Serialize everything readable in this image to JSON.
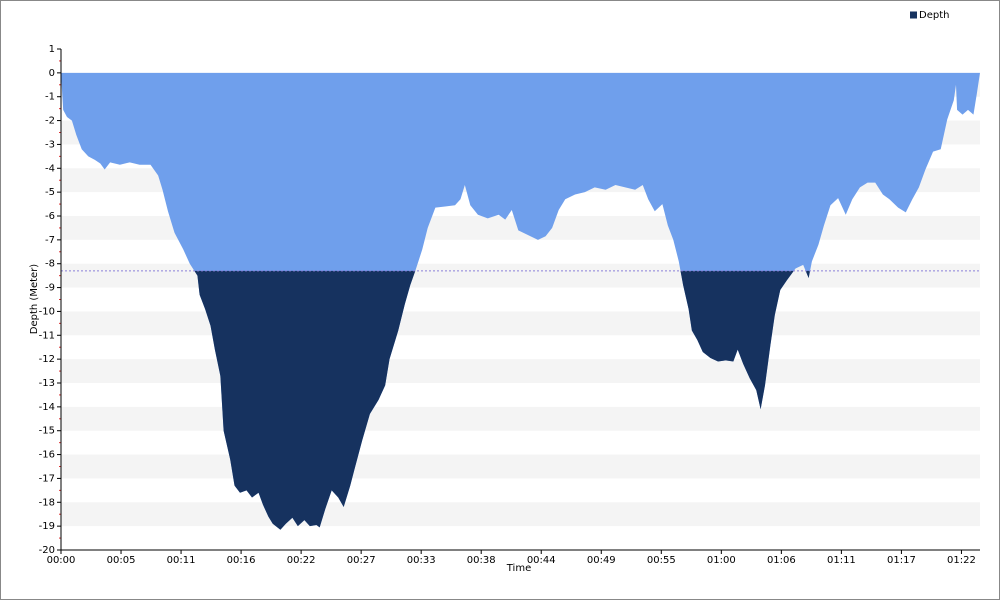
{
  "chart_data": {
    "type": "area",
    "x_label": "Time",
    "y_label": "Depth (Meter)",
    "x": [
      0,
      0.2,
      0.55,
      1.0,
      1.4,
      1.9,
      2.5,
      3.1,
      3.6,
      4.0,
      4.5,
      5.4,
      6.3,
      7.2,
      8.2,
      8.9,
      9.3,
      9.8,
      10.4,
      11.2,
      11.8,
      12.5,
      12.7,
      13.2,
      13.7,
      14.1,
      14.6,
      14.9,
      15.5,
      15.9,
      16.4,
      17.0,
      17.5,
      18.1,
      18.5,
      19.0,
      19.4,
      20.1,
      20.6,
      21.2,
      21.7,
      22.3,
      22.8,
      23.4,
      23.7,
      24.2,
      24.8,
      25.4,
      25.9,
      26.5,
      26.9,
      27.6,
      28.3,
      29.1,
      29.7,
      30.1,
      30.9,
      31.5,
      32.0,
      32.5,
      33.1,
      33.6,
      34.3,
      35.2,
      36.1,
      36.6,
      37.0,
      37.5,
      38.2,
      39.1,
      40.1,
      40.7,
      41.3,
      41.9,
      42.8,
      43.7,
      44.4,
      45.0,
      45.6,
      46.2,
      47.1,
      48.0,
      48.9,
      49.9,
      50.8,
      51.7,
      52.6,
      53.3,
      53.8,
      54.4,
      55.1,
      55.6,
      56.1,
      56.6,
      57.0,
      57.5,
      57.8,
      58.3,
      58.8,
      59.5,
      60.2,
      60.9,
      61.6,
      62.0,
      62.5,
      63.1,
      63.7,
      64.1,
      64.5,
      65.0,
      65.4,
      65.9,
      66.5,
      67.3,
      68.0,
      68.5,
      68.8,
      69.4,
      69.9,
      70.5,
      71.2,
      71.9,
      72.5,
      73.2,
      73.9,
      74.6,
      75.3,
      75.9,
      76.7,
      77.4,
      78.0,
      78.6,
      79.2,
      79.9,
      80.6,
      81.2,
      81.8,
      82.0,
      82.1,
      82.6,
      83.1,
      83.6,
      83.9,
      84.2
    ],
    "series": [
      {
        "name": "Depth",
        "color": "#6f9fec",
        "legend_color": "#16325f",
        "values": [
          0,
          -1.55,
          -1.85,
          -2.0,
          -2.6,
          -3.2,
          -3.5,
          -3.65,
          -3.8,
          -4.05,
          -3.75,
          -3.85,
          -3.75,
          -3.85,
          -3.85,
          -4.3,
          -4.9,
          -5.8,
          -6.7,
          -7.4,
          -8.0,
          -8.5,
          -9.3,
          -9.9,
          -10.6,
          -11.6,
          -12.7,
          -15.0,
          -16.2,
          -17.3,
          -17.6,
          -17.5,
          -17.8,
          -17.6,
          -18.1,
          -18.6,
          -18.9,
          -19.15,
          -18.9,
          -18.65,
          -19.0,
          -18.75,
          -19.0,
          -18.95,
          -19.05,
          -18.3,
          -17.5,
          -17.8,
          -18.2,
          -17.3,
          -16.6,
          -15.4,
          -14.3,
          -13.7,
          -13.1,
          -12.0,
          -10.8,
          -9.7,
          -8.9,
          -8.25,
          -7.4,
          -6.5,
          -5.65,
          -5.6,
          -5.55,
          -5.3,
          -4.7,
          -5.55,
          -5.95,
          -6.1,
          -5.95,
          -6.15,
          -5.75,
          -6.6,
          -6.8,
          -7.0,
          -6.85,
          -6.5,
          -5.75,
          -5.3,
          -5.1,
          -5.0,
          -4.8,
          -4.9,
          -4.7,
          -4.8,
          -4.9,
          -4.7,
          -5.3,
          -5.8,
          -5.5,
          -6.4,
          -7.0,
          -7.9,
          -8.9,
          -9.9,
          -10.8,
          -11.2,
          -11.7,
          -11.95,
          -12.1,
          -12.05,
          -12.1,
          -11.6,
          -12.2,
          -12.8,
          -13.3,
          -14.1,
          -13.1,
          -11.4,
          -10.15,
          -9.1,
          -8.7,
          -8.2,
          -8.05,
          -8.6,
          -7.9,
          -7.2,
          -6.4,
          -5.55,
          -5.25,
          -5.95,
          -5.3,
          -4.8,
          -4.6,
          -4.6,
          -5.1,
          -5.3,
          -5.65,
          -5.85,
          -5.3,
          -4.8,
          -4.05,
          -3.3,
          -3.2,
          -1.95,
          -1.15,
          -0.5,
          -1.55,
          -1.75,
          -1.55,
          -1.75,
          -0.9,
          0
        ]
      }
    ],
    "threshold": -8.3,
    "threshold_fill": "#16325f",
    "threshold_line_color": "#8a7fd8",
    "xlim": [
      0,
      84.2
    ],
    "xticks": [
      {
        "value": 0,
        "label": "00:00"
      },
      {
        "value": 5.5,
        "label": "00:05"
      },
      {
        "value": 11,
        "label": "00:11"
      },
      {
        "value": 16.5,
        "label": "00:16"
      },
      {
        "value": 22,
        "label": "00:22"
      },
      {
        "value": 27.5,
        "label": "00:27"
      },
      {
        "value": 33,
        "label": "00:33"
      },
      {
        "value": 38.5,
        "label": "00:38"
      },
      {
        "value": 44,
        "label": "00:44"
      },
      {
        "value": 49.5,
        "label": "00:49"
      },
      {
        "value": 55,
        "label": "00:55"
      },
      {
        "value": 60.5,
        "label": "01:00"
      },
      {
        "value": 66,
        "label": "01:06"
      },
      {
        "value": 71.5,
        "label": "01:11"
      },
      {
        "value": 77,
        "label": "01:17"
      },
      {
        "value": 82.5,
        "label": "01:22"
      }
    ],
    "ylim": [
      -20,
      1
    ],
    "yticks": [
      1,
      0,
      -1,
      -2,
      -3,
      -4,
      -5,
      -6,
      -7,
      -8,
      -9,
      -10,
      -11,
      -12,
      -13,
      -14,
      -15,
      -16,
      -17,
      -18,
      -19,
      -20
    ],
    "grid": true,
    "legend": "top-right"
  }
}
